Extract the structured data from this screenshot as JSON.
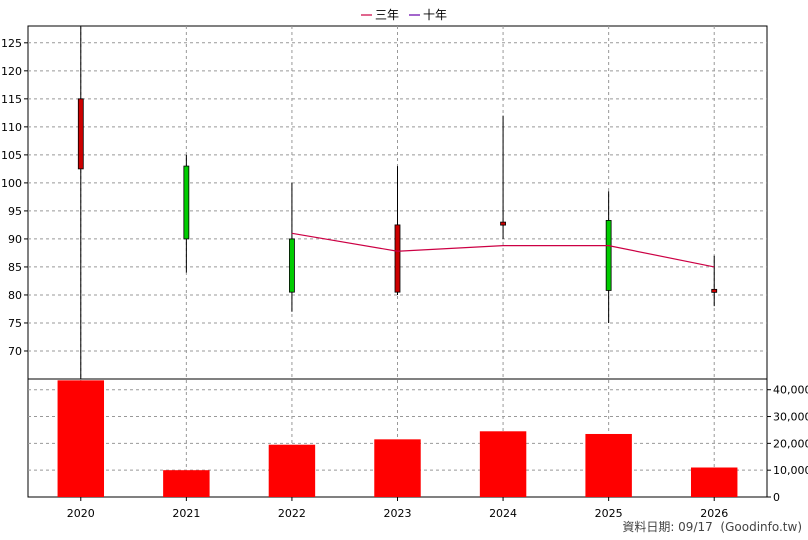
{
  "legend": {
    "items": [
      {
        "label": "三年",
        "color": "#cc0044"
      },
      {
        "label": "十年",
        "color": "#6600aa"
      }
    ]
  },
  "footer": {
    "date_label": "資料日期: 09/17",
    "source": "(Goodinfo.tw)"
  },
  "chart_data": {
    "type": "candlestick",
    "categories": [
      "2020",
      "2021",
      "2022",
      "2023",
      "2024",
      "2025",
      "2026"
    ],
    "price_axis": {
      "ylim": [
        65,
        128
      ],
      "ticks": [
        70,
        75,
        80,
        85,
        90,
        95,
        100,
        105,
        110,
        115,
        120,
        125
      ]
    },
    "volume_axis": {
      "ylim": [
        0,
        44000
      ],
      "ticks": [
        0,
        10000,
        20000,
        30000,
        40000
      ],
      "tick_labels": [
        "0",
        "10,000",
        "20,000",
        "30,000",
        "40,000"
      ]
    },
    "candles": [
      {
        "year": "2020",
        "open": 102.5,
        "close": 115,
        "high": 128,
        "low": 65
      },
      {
        "year": "2021",
        "open": 103,
        "close": 90,
        "high": 105,
        "low": 84
      },
      {
        "year": "2022",
        "open": 90,
        "close": 80.5,
        "high": 100,
        "low": 77
      },
      {
        "year": "2023",
        "open": 80.5,
        "close": 92.5,
        "high": 103,
        "low": 80
      },
      {
        "year": "2024",
        "open": 92.5,
        "close": 93,
        "high": 112,
        "low": 90
      },
      {
        "year": "2025",
        "open": 93.3,
        "close": 80.8,
        "high": 98.5,
        "low": 75
      },
      {
        "year": "2026",
        "open": 80.5,
        "close": 81,
        "high": 87,
        "low": 78
      }
    ],
    "up_color": "#cc0000",
    "down_color": "#00cc00",
    "series": [
      {
        "name": "三年",
        "color": "#cc0044",
        "points": [
          {
            "x": "2022",
            "y": 91
          },
          {
            "x": "2023",
            "y": 87.8
          },
          {
            "x": "2024",
            "y": 88.8
          },
          {
            "x": "2025",
            "y": 88.8
          },
          {
            "x": "2026",
            "y": 85
          }
        ]
      }
    ],
    "volume": {
      "values": [
        43500,
        10000,
        19500,
        21500,
        24500,
        23500,
        11000
      ],
      "color": "#ff0000"
    },
    "grid": true
  }
}
